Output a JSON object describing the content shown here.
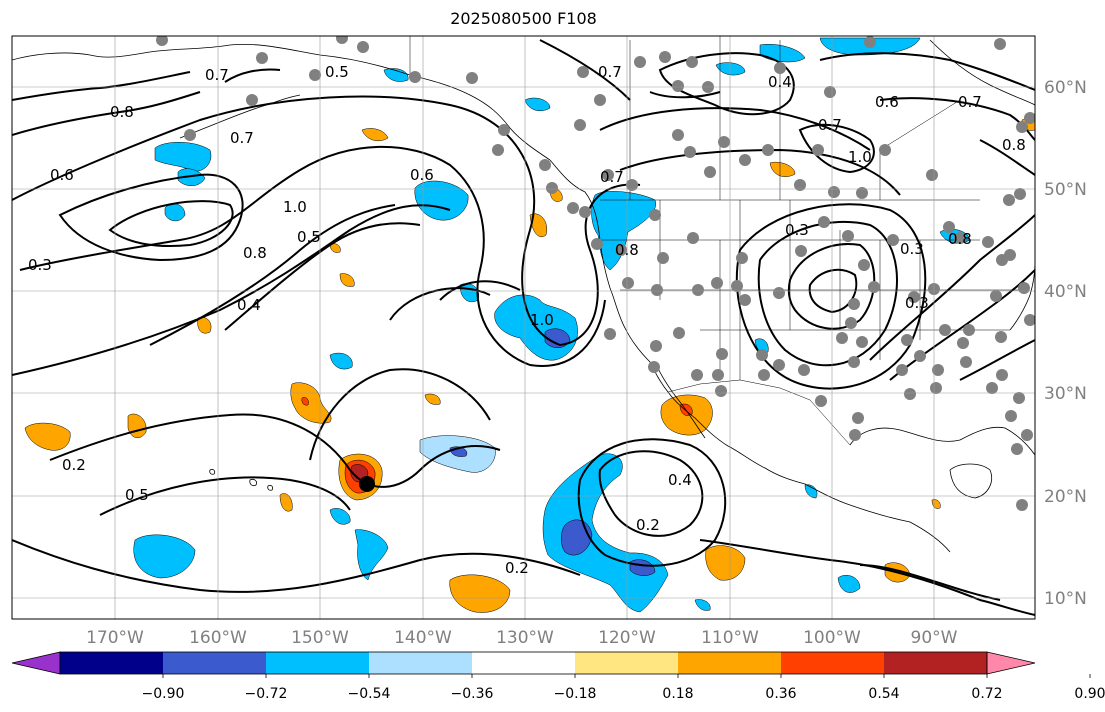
{
  "title": "2025080500 F108",
  "axes": {
    "lon_labels": [
      "170°W",
      "160°W",
      "150°W",
      "140°W",
      "130°W",
      "120°W",
      "110°W",
      "100°W",
      "90°W"
    ],
    "lat_labels": [
      "60°N",
      "50°N",
      "40°N",
      "30°N",
      "20°N",
      "10°N"
    ],
    "label_color": "#808080"
  },
  "colorbar": {
    "tick_labels": [
      "−0.90",
      "−0.72",
      "−0.54",
      "−0.36",
      "−0.18",
      "0.18",
      "0.36",
      "0.54",
      "0.72",
      "0.90"
    ],
    "colors": [
      "#9932CC",
      "#00008B",
      "#3A5ACD",
      "#00BFFF",
      "#ADE0FF",
      "#FFFFFF",
      "#FFE680",
      "#FFA500",
      "#FF4000",
      "#B22222",
      "#FF88AA"
    ]
  },
  "contour_labels": [
    "0.7",
    "0.8",
    "0.6",
    "0.7",
    "0.5",
    "0.7",
    "0.4",
    "0.7",
    "1.0",
    "0.6",
    "0.7",
    "0.8",
    "0.6",
    "1.0",
    "0.8",
    "0.5",
    "0.4",
    "0.3",
    "0.7",
    "1.0",
    "0.8",
    "0.3",
    "0.8",
    "0.3",
    "0.3",
    "0.2",
    "0.5",
    "0.4",
    "0.2",
    "0.2"
  ],
  "observation_color": "#808080"
}
